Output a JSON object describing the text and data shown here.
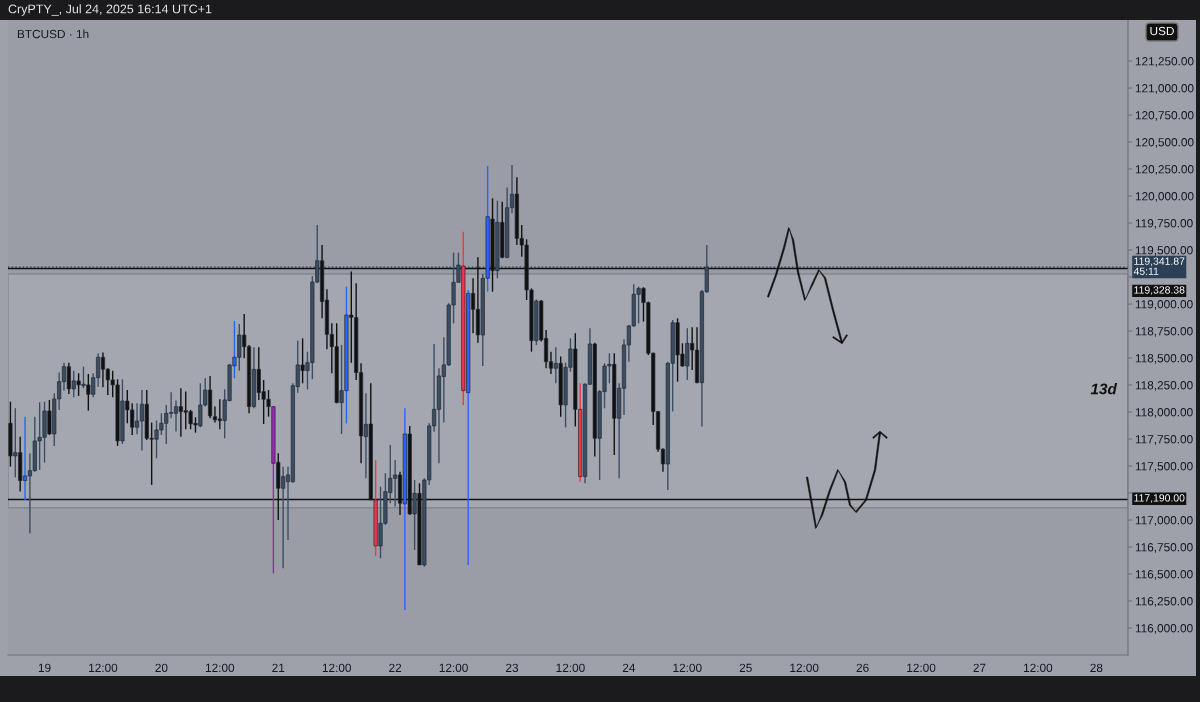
{
  "chart_data": {
    "type": "candlestick",
    "title": "BTCUSD · 1h",
    "subtitle": "CryPTY_, Jul 24, 2025 16:14 UTC+1",
    "annotations": [
      "USD",
      "13d",
      "45:11"
    ],
    "x": [
      "2025-07-18T17:00",
      "2025-07-18T18:00",
      "2025-07-18T19:00",
      "2025-07-18T20:00",
      "2025-07-18T21:00",
      "2025-07-18T22:00",
      "2025-07-18T23:00",
      "2025-07-19T00:00",
      "2025-07-19T01:00",
      "2025-07-19T02:00",
      "2025-07-19T03:00",
      "2025-07-19T04:00",
      "2025-07-19T05:00",
      "2025-07-19T06:00",
      "2025-07-19T07:00",
      "2025-07-19T08:00",
      "2025-07-19T09:00",
      "2025-07-19T10:00",
      "2025-07-19T11:00",
      "2025-07-19T12:00",
      "2025-07-19T13:00",
      "2025-07-19T14:00",
      "2025-07-19T15:00",
      "2025-07-19T16:00",
      "2025-07-19T17:00",
      "2025-07-19T18:00",
      "2025-07-19T19:00",
      "2025-07-19T20:00",
      "2025-07-19T21:00",
      "2025-07-19T22:00",
      "2025-07-19T23:00",
      "2025-07-20T00:00",
      "2025-07-20T01:00",
      "2025-07-20T02:00",
      "2025-07-20T03:00",
      "2025-07-20T04:00",
      "2025-07-20T05:00",
      "2025-07-20T06:00",
      "2025-07-20T07:00",
      "2025-07-20T08:00",
      "2025-07-20T09:00",
      "2025-07-20T10:00",
      "2025-07-20T11:00",
      "2025-07-20T12:00",
      "2025-07-20T13:00",
      "2025-07-20T14:00",
      "2025-07-20T15:00",
      "2025-07-20T16:00",
      "2025-07-20T17:00",
      "2025-07-20T18:00",
      "2025-07-20T19:00",
      "2025-07-20T20:00",
      "2025-07-20T21:00",
      "2025-07-20T22:00",
      "2025-07-20T23:00",
      "2025-07-21T00:00",
      "2025-07-21T01:00",
      "2025-07-21T02:00",
      "2025-07-21T03:00",
      "2025-07-21T04:00",
      "2025-07-21T05:00",
      "2025-07-21T06:00",
      "2025-07-21T07:00",
      "2025-07-21T08:00",
      "2025-07-21T09:00",
      "2025-07-21T10:00",
      "2025-07-21T11:00",
      "2025-07-21T12:00",
      "2025-07-21T13:00",
      "2025-07-21T14:00",
      "2025-07-21T15:00",
      "2025-07-21T16:00",
      "2025-07-21T17:00",
      "2025-07-21T18:00",
      "2025-07-21T19:00",
      "2025-07-21T20:00",
      "2025-07-21T21:00",
      "2025-07-21T22:00",
      "2025-07-21T23:00",
      "2025-07-22T00:00",
      "2025-07-22T01:00",
      "2025-07-22T02:00",
      "2025-07-22T03:00",
      "2025-07-22T04:00",
      "2025-07-22T05:00",
      "2025-07-22T06:00",
      "2025-07-22T07:00",
      "2025-07-22T08:00",
      "2025-07-22T09:00",
      "2025-07-22T10:00",
      "2025-07-22T11:00",
      "2025-07-22T12:00",
      "2025-07-22T13:00",
      "2025-07-22T14:00",
      "2025-07-22T15:00",
      "2025-07-22T16:00",
      "2025-07-22T17:00",
      "2025-07-22T18:00",
      "2025-07-22T19:00",
      "2025-07-22T20:00",
      "2025-07-22T21:00",
      "2025-07-22T22:00",
      "2025-07-22T23:00",
      "2025-07-23T00:00",
      "2025-07-23T01:00",
      "2025-07-23T02:00",
      "2025-07-23T03:00",
      "2025-07-23T04:00",
      "2025-07-23T05:00",
      "2025-07-23T06:00",
      "2025-07-23T07:00",
      "2025-07-23T08:00",
      "2025-07-23T09:00",
      "2025-07-23T10:00",
      "2025-07-23T11:00",
      "2025-07-23T12:00",
      "2025-07-23T13:00",
      "2025-07-23T14:00",
      "2025-07-23T15:00",
      "2025-07-23T16:00",
      "2025-07-23T17:00",
      "2025-07-23T18:00",
      "2025-07-23T19:00",
      "2025-07-23T20:00",
      "2025-07-23T21:00",
      "2025-07-23T22:00",
      "2025-07-23T23:00",
      "2025-07-24T00:00",
      "2025-07-24T01:00",
      "2025-07-24T02:00",
      "2025-07-24T03:00",
      "2025-07-24T04:00",
      "2025-07-24T05:00",
      "2025-07-24T06:00",
      "2025-07-24T07:00",
      "2025-07-24T08:00",
      "2025-07-24T09:00",
      "2025-07-24T10:00",
      "2025-07-24T11:00",
      "2025-07-24T12:00",
      "2025-07-24T13:00",
      "2025-07-24T14:00",
      "2025-07-24T15:00",
      "2025-07-24T16:00"
    ],
    "ohlc": [
      [
        117896,
        118096,
        117495,
        117593
      ],
      [
        117593,
        118035,
        117396,
        117624
      ],
      [
        117624,
        117772,
        117263,
        117365
      ],
      [
        117365,
        117957,
        117186,
        117408
      ],
      [
        117408,
        117618,
        116877,
        117457
      ],
      [
        117457,
        117957,
        117448,
        117732
      ],
      [
        117732,
        118090,
        117464,
        117766
      ],
      [
        117766,
        118096,
        117532,
        118010
      ],
      [
        118010,
        118112,
        117788,
        117797
      ],
      [
        117797,
        118173,
        117686,
        118121
      ],
      [
        118121,
        118365,
        118019,
        118281
      ],
      [
        118281,
        118457,
        118198,
        118420
      ],
      [
        118420,
        118457,
        118167,
        118214
      ],
      [
        118214,
        118383,
        118136,
        118288
      ],
      [
        118288,
        118359,
        118149,
        118251
      ],
      [
        118244,
        118420,
        118220,
        118257
      ],
      [
        118251,
        118352,
        118013,
        118164
      ],
      [
        118164,
        118359,
        118136,
        118318
      ],
      [
        118318,
        118544,
        118235,
        118507
      ],
      [
        118507,
        118550,
        118229,
        118396
      ],
      [
        118396,
        118405,
        118158,
        118297
      ],
      [
        118297,
        118383,
        118136,
        118251
      ],
      [
        118251,
        118303,
        117686,
        117732
      ],
      [
        117732,
        118303,
        117704,
        118102
      ],
      [
        118102,
        118204,
        117896,
        118019
      ],
      [
        118019,
        118081,
        117788,
        117859
      ],
      [
        117859,
        118081,
        117794,
        117917
      ],
      [
        117917,
        118204,
        117643,
        118072
      ],
      [
        118072,
        118204,
        117741,
        117757
      ],
      [
        117757,
        117902,
        117325,
        117748
      ],
      [
        117748,
        117920,
        117572,
        117834
      ],
      [
        117834,
        117988,
        117788,
        117896
      ],
      [
        117896,
        118065,
        117704,
        117988
      ],
      [
        117988,
        118183,
        117942,
        117991
      ],
      [
        117988,
        118106,
        117819,
        118050
      ],
      [
        118050,
        118220,
        117772,
        118004
      ],
      [
        118013,
        118189,
        117840,
        117998
      ],
      [
        118004,
        118019,
        117840,
        117890
      ],
      [
        117896,
        117951,
        117809,
        117880
      ],
      [
        117871,
        118266,
        117859,
        118065
      ],
      [
        118065,
        118312,
        118050,
        118204
      ],
      [
        118204,
        118334,
        117942,
        117964
      ],
      [
        117957,
        118050,
        117902,
        117927
      ],
      [
        117936,
        118118,
        117840,
        117920
      ],
      [
        117920,
        118210,
        117757,
        118112
      ],
      [
        118106,
        118445,
        118099,
        118436
      ],
      [
        118427,
        118843,
        118312,
        118507
      ],
      [
        118507,
        118815,
        118383,
        118713
      ],
      [
        118713,
        118908,
        118497,
        118605
      ],
      [
        118605,
        118621,
        117988,
        118050
      ],
      [
        118050,
        118599,
        118034,
        118395
      ],
      [
        118395,
        118599,
        118111,
        118179
      ],
      [
        118189,
        118297,
        117889,
        118118
      ],
      [
        118118,
        118204,
        117957,
        118050
      ],
      [
        118050,
        118056,
        116507,
        117525
      ],
      [
        117534,
        117618,
        117001,
        117294
      ],
      [
        117294,
        117494,
        116553,
        117402
      ],
      [
        117355,
        117494,
        116815,
        117417
      ],
      [
        117355,
        118266,
        117346,
        118244
      ],
      [
        118235,
        118661,
        118179,
        118436
      ],
      [
        118436,
        118682,
        118266,
        118383
      ],
      [
        118383,
        118559,
        118210,
        118457
      ],
      [
        118457,
        119259,
        118303,
        119204
      ],
      [
        119204,
        119732,
        119192,
        119401
      ],
      [
        119401,
        119546,
        118868,
        119022
      ],
      [
        119037,
        119136,
        118581,
        118719
      ],
      [
        118719,
        118821,
        118358,
        118605
      ],
      [
        118605,
        118821,
        118081,
        118087
      ],
      [
        118087,
        118621,
        117797,
        118198
      ],
      [
        118198,
        119161,
        117895,
        118898
      ],
      [
        118898,
        119300,
        118457,
        118877
      ],
      [
        118874,
        119192,
        118297,
        118365
      ],
      [
        118365,
        118451,
        117525,
        117778
      ],
      [
        117772,
        118173,
        117386,
        117886
      ],
      [
        117889,
        118266,
        117186,
        117186
      ],
      [
        117186,
        117556,
        116667,
        116760
      ],
      [
        116760,
        117309,
        116646,
        116970
      ],
      [
        116970,
        117433,
        116954,
        117263
      ],
      [
        117254,
        117695,
        117155,
        117386
      ],
      [
        117386,
        117556,
        117124,
        117417
      ],
      [
        117417,
        117448,
        117047,
        117155
      ],
      [
        117149,
        118034,
        116167,
        117797
      ],
      [
        117797,
        117871,
        117047,
        117056
      ],
      [
        117056,
        117371,
        116723,
        117247
      ],
      [
        117247,
        117340,
        116584,
        116584
      ],
      [
        116584,
        117386,
        116568,
        117371
      ],
      [
        117371,
        117895,
        117325,
        117871
      ],
      [
        117871,
        118630,
        117818,
        118025
      ],
      [
        118025,
        118405,
        117525,
        118334
      ],
      [
        118328,
        118692,
        117902,
        118436
      ],
      [
        118436,
        119006,
        118426,
        118991
      ],
      [
        118991,
        119476,
        118821,
        119201
      ],
      [
        119201,
        119476,
        119198,
        119361
      ],
      [
        119352,
        119670,
        118065,
        118198
      ],
      [
        118179,
        119130,
        116584,
        119099
      ],
      [
        119099,
        119238,
        118729,
        118951
      ],
      [
        118951,
        119432,
        118642,
        118713
      ],
      [
        118713,
        119278,
        118426,
        119238
      ],
      [
        119238,
        120278,
        119114,
        119809
      ],
      [
        119787,
        119979,
        119114,
        119309
      ],
      [
        119309,
        119957,
        119238,
        119756
      ],
      [
        119756,
        119948,
        119423,
        119432
      ],
      [
        119432,
        120080,
        119423,
        119892
      ],
      [
        119892,
        120287,
        119840,
        120016
      ],
      [
        120019,
        120173,
        119546,
        119608
      ],
      [
        119608,
        119732,
        119438,
        119546
      ],
      [
        119546,
        119599,
        119037,
        119130
      ],
      [
        119130,
        119145,
        118559,
        118661
      ],
      [
        118661,
        119043,
        118621,
        119028
      ],
      [
        119028,
        119037,
        118652,
        118667
      ],
      [
        118682,
        118760,
        118405,
        118466
      ],
      [
        118466,
        118559,
        118352,
        118405
      ],
      [
        118405,
        118599,
        118266,
        118451
      ],
      [
        118451,
        118513,
        117957,
        118065
      ],
      [
        118065,
        118457,
        117858,
        118414
      ],
      [
        118414,
        118682,
        118374,
        118584
      ],
      [
        118584,
        118729,
        117865,
        118025
      ],
      [
        118025,
        118266,
        117355,
        117402
      ],
      [
        117402,
        118266,
        117340,
        118257
      ],
      [
        118257,
        118775,
        118250,
        118630
      ],
      [
        118630,
        118642,
        117587,
        117757
      ],
      [
        117757,
        118204,
        117371,
        118189
      ],
      [
        118189,
        118451,
        118034,
        118426
      ],
      [
        118426,
        118544,
        118266,
        118442
      ],
      [
        118442,
        118544,
        117602,
        117942
      ],
      [
        117942,
        118266,
        117386,
        118220
      ],
      [
        118220,
        118673,
        117973,
        118621
      ],
      [
        118621,
        118806,
        118466,
        118797
      ],
      [
        118797,
        119182,
        118790,
        119090
      ],
      [
        119090,
        119161,
        118821,
        119145
      ],
      [
        119145,
        119155,
        118837,
        119013
      ],
      [
        119013,
        119022,
        118528,
        118544
      ],
      [
        118544,
        118550,
        117880,
        118004
      ],
      [
        118004,
        118010,
        117633,
        117655
      ],
      [
        117655,
        117664,
        117448,
        117519
      ],
      [
        117519,
        118466,
        117278,
        118451
      ],
      [
        118451,
        118852,
        118004,
        118827
      ],
      [
        118827,
        118868,
        118281,
        118528
      ],
      [
        118537,
        118636,
        118420,
        118426
      ],
      [
        118426,
        118775,
        118297,
        118636
      ],
      [
        118636,
        118784,
        118389,
        118574
      ],
      [
        118574,
        118784,
        118266,
        118272
      ],
      [
        118272,
        119130,
        117865,
        119114
      ],
      [
        119114,
        119546,
        119105,
        119342
      ]
    ],
    "colors": [
      "#111111",
      "#3b4d63",
      "#111111",
      "#2962ff",
      "#3b4d63",
      "#3b4d63",
      "#3b4d63",
      "#3b4d63",
      "#111111",
      "#3b4d63",
      "#3b4d63",
      "#3b4d63",
      "#111111",
      "#3b4d63",
      "#111111",
      "#3b4d63",
      "#111111",
      "#3b4d63",
      "#3b4d63",
      "#111111",
      "#111111",
      "#111111",
      "#111111",
      "#3b4d63",
      "#111111",
      "#111111",
      "#3b4d63",
      "#3b4d63",
      "#111111",
      "#111111",
      "#3b4d63",
      "#3b4d63",
      "#3b4d63",
      "#3b4d63",
      "#3b4d63",
      "#111111",
      "#111111",
      "#111111",
      "#111111",
      "#3b4d63",
      "#3b4d63",
      "#111111",
      "#111111",
      "#111111",
      "#3b4d63",
      "#3b4d63",
      "#2962ff",
      "#3b4d63",
      "#111111",
      "#111111",
      "#3b4d63",
      "#111111",
      "#111111",
      "#111111",
      "#9c27b0",
      "#111111",
      "#3b4d63",
      "#3b4d63",
      "#3b4d63",
      "#3b4d63",
      "#111111",
      "#3b4d63",
      "#3b4d63",
      "#3b4d63",
      "#111111",
      "#111111",
      "#111111",
      "#111111",
      "#3b4d63",
      "#2962ff",
      "#111111",
      "#111111",
      "#111111",
      "#3b4d63",
      "#111111",
      "#f23645",
      "#3b4d63",
      "#3b4d63",
      "#3b4d63",
      "#3b4d63",
      "#111111",
      "#2962ff",
      "#111111",
      "#3b4d63",
      "#111111",
      "#3b4d63",
      "#3b4d63",
      "#3b4d63",
      "#3b4d63",
      "#3b4d63",
      "#3b4d63",
      "#3b4d63",
      "#3b4d63",
      "#f23645",
      "#2962ff",
      "#111111",
      "#111111",
      "#3b4d63",
      "#2962ff",
      "#111111",
      "#3b4d63",
      "#111111",
      "#3b4d63",
      "#3b4d63",
      "#111111",
      "#111111",
      "#111111",
      "#111111",
      "#3b4d63",
      "#111111",
      "#111111",
      "#111111",
      "#3b4d63",
      "#111111",
      "#3b4d63",
      "#3b4d63",
      "#111111",
      "#f23645",
      "#3b4d63",
      "#3b4d63",
      "#111111",
      "#3b4d63",
      "#3b4d63",
      "#3b4d63",
      "#111111",
      "#3b4d63",
      "#3b4d63",
      "#3b4d63",
      "#3b4d63",
      "#3b4d63",
      "#111111",
      "#111111",
      "#111111",
      "#111111",
      "#111111",
      "#3b4d63",
      "#3b4d63",
      "#111111",
      "#111111",
      "#3b4d63",
      "#111111",
      "#111111",
      "#3b4d63",
      "#3b4d63"
    ],
    "xlim": [
      "2025-07-18T16:30",
      "2025-07-28T06:30"
    ],
    "xticks": [
      {
        "value": "2025-07-19T00:00",
        "label": "19"
      },
      {
        "value": "2025-07-19T12:00",
        "label": "12:00"
      },
      {
        "value": "2025-07-20T00:00",
        "label": "20"
      },
      {
        "value": "2025-07-20T12:00",
        "label": "12:00"
      },
      {
        "value": "2025-07-21T00:00",
        "label": "21"
      },
      {
        "value": "2025-07-21T12:00",
        "label": "12:00"
      },
      {
        "value": "2025-07-22T00:00",
        "label": "22"
      },
      {
        "value": "2025-07-22T12:00",
        "label": "12:00"
      },
      {
        "value": "2025-07-23T00:00",
        "label": "23"
      },
      {
        "value": "2025-07-23T12:00",
        "label": "12:00"
      },
      {
        "value": "2025-07-24T00:00",
        "label": "24"
      },
      {
        "value": "2025-07-24T12:00",
        "label": "12:00"
      },
      {
        "value": "2025-07-25T00:00",
        "label": "25"
      },
      {
        "value": "2025-07-25T12:00",
        "label": "12:00"
      },
      {
        "value": "2025-07-26T00:00",
        "label": "26"
      },
      {
        "value": "2025-07-26T12:00",
        "label": "12:00"
      },
      {
        "value": "2025-07-27T00:00",
        "label": "27"
      },
      {
        "value": "2025-07-27T12:00",
        "label": "12:00"
      },
      {
        "value": "2025-07-28T00:00",
        "label": "28"
      }
    ],
    "ylim": [
      115750,
      121630
    ],
    "yticks": [
      {
        "value": 116000,
        "label": "116,000.00"
      },
      {
        "value": 116250,
        "label": "116,250.00"
      },
      {
        "value": 116500,
        "label": "116,500.00"
      },
      {
        "value": 116750,
        "label": "116,750.00"
      },
      {
        "value": 117000,
        "label": "117,000.00"
      },
      {
        "value": 117250,
        "label": null
      },
      {
        "value": 117500,
        "label": "117,500.00"
      },
      {
        "value": 117750,
        "label": "117,750.00"
      },
      {
        "value": 118000,
        "label": "118,000.00"
      },
      {
        "value": 118250,
        "label": "118,250.00"
      },
      {
        "value": 118500,
        "label": "118,500.00"
      },
      {
        "value": 118750,
        "label": "118,750.00"
      },
      {
        "value": 119000,
        "label": "119,000.00"
      },
      {
        "value": 119250,
        "label": null
      },
      {
        "value": 119500,
        "label": "119,500.00"
      },
      {
        "value": 119750,
        "label": "119,750.00"
      },
      {
        "value": 120000,
        "label": "120,000.00"
      },
      {
        "value": 120250,
        "label": "120,250.00"
      },
      {
        "value": 120500,
        "label": "120,500.00"
      },
      {
        "value": 120750,
        "label": "120,750.00"
      },
      {
        "value": 121000,
        "label": "121,000.00"
      },
      {
        "value": 121250,
        "label": "121,250.00"
      }
    ],
    "ref_lines": [
      {
        "axis": "y",
        "value": 119341.87,
        "label": "119,341.87",
        "color": "#2b3f55",
        "line_style": "dotted"
      },
      {
        "axis": "y",
        "value": 119328.38,
        "label": "119,328.38",
        "color": "#111111",
        "line_style": "solid"
      },
      {
        "axis": "y",
        "value": 117190,
        "label": "117,190.00",
        "color": "#111111",
        "line_style": "solid"
      }
    ],
    "bands": [
      {
        "axis": "y",
        "from": 117114,
        "to": 119278,
        "color": "#a5a7b0"
      }
    ]
  }
}
